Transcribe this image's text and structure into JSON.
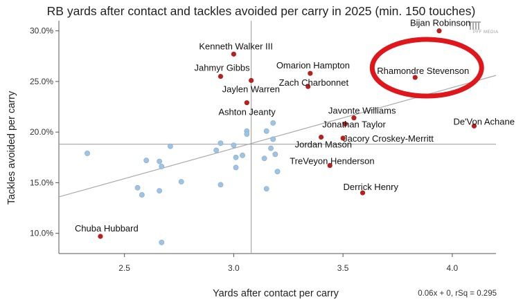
{
  "chart_data": {
    "type": "scatter",
    "title": "RB yards after contact and tackles avoided per carry in 2025 (min. 150 touches)",
    "xlabel": "Yards after contact per carry",
    "ylabel": "Tackles avoided per carry",
    "xlim": [
      2.2,
      4.2
    ],
    "ylim": [
      0.08,
      0.31
    ],
    "x_ticks": [
      "2.5",
      "3.0",
      "3.5",
      "4.0"
    ],
    "y_ticks": [
      "10.0%",
      "15.0%",
      "20.0%",
      "25.0%",
      "30.0%"
    ],
    "x_tick_values": [
      2.5,
      3.0,
      3.5,
      4.0
    ],
    "y_tick_values": [
      0.1,
      0.15,
      0.2,
      0.25,
      0.3
    ],
    "mean_lines": {
      "x": 3.08,
      "y": 0.188
    },
    "trendline": {
      "slope": 0.06,
      "intercept": 0.0,
      "label": "0.06x + 0, rSq = 0.295",
      "x_range": [
        2.2,
        4.2
      ],
      "y_range": [
        0.136,
        0.256
      ]
    },
    "highlight_color": "#b8201f",
    "other_color": "#9fc3e0",
    "circle_color": "#e0161b",
    "circled_player": "Rhamondre Stevenson",
    "labeled_points": [
      {
        "name": "Bijan Robinson",
        "x": 3.94,
        "y": 0.3
      },
      {
        "name": "Kenneth Walker III",
        "x": 3.0,
        "y": 0.277
      },
      {
        "name": "Jahmyr Gibbs",
        "x": 2.94,
        "y": 0.255
      },
      {
        "name": "Omarion Hampton",
        "x": 3.35,
        "y": 0.258
      },
      {
        "name": "Jaylen Warren",
        "x": 3.08,
        "y": 0.251
      },
      {
        "name": "Zach Charbonnet",
        "x": 3.34,
        "y": 0.245
      },
      {
        "name": "Rhamondre Stevenson",
        "x": 3.83,
        "y": 0.254
      },
      {
        "name": "Ashton Jeanty",
        "x": 3.06,
        "y": 0.229
      },
      {
        "name": "Javonte Williams",
        "x": 3.55,
        "y": 0.214
      },
      {
        "name": "Jonathan Taylor",
        "x": 3.51,
        "y": 0.208
      },
      {
        "name": "De'Von Achane",
        "x": 4.1,
        "y": 0.206
      },
      {
        "name": "Jordan Mason",
        "x": 3.4,
        "y": 0.195
      },
      {
        "name": "Jacory Croskey-Merritt",
        "x": 3.5,
        "y": 0.194
      },
      {
        "name": "TreVeyon Henderson",
        "x": 3.44,
        "y": 0.167
      },
      {
        "name": "Derrick Henry",
        "x": 3.59,
        "y": 0.14
      },
      {
        "name": "Chuba Hubbard",
        "x": 2.39,
        "y": 0.097
      }
    ],
    "other_points": [
      {
        "x": 2.33,
        "y": 0.179
      },
      {
        "x": 2.6,
        "y": 0.172
      },
      {
        "x": 2.66,
        "y": 0.171
      },
      {
        "x": 2.71,
        "y": 0.186
      },
      {
        "x": 2.67,
        "y": 0.166
      },
      {
        "x": 2.56,
        "y": 0.145
      },
      {
        "x": 2.58,
        "y": 0.138
      },
      {
        "x": 2.66,
        "y": 0.142
      },
      {
        "x": 2.76,
        "y": 0.151
      },
      {
        "x": 2.67,
        "y": 0.091
      },
      {
        "x": 2.92,
        "y": 0.182
      },
      {
        "x": 2.94,
        "y": 0.189
      },
      {
        "x": 2.94,
        "y": 0.148
      },
      {
        "x": 3.0,
        "y": 0.187
      },
      {
        "x": 3.01,
        "y": 0.175
      },
      {
        "x": 3.01,
        "y": 0.165
      },
      {
        "x": 3.04,
        "y": 0.177
      },
      {
        "x": 3.06,
        "y": 0.201
      },
      {
        "x": 3.06,
        "y": 0.198
      },
      {
        "x": 3.15,
        "y": 0.201
      },
      {
        "x": 3.18,
        "y": 0.209
      },
      {
        "x": 3.17,
        "y": 0.184
      },
      {
        "x": 3.18,
        "y": 0.193
      },
      {
        "x": 3.19,
        "y": 0.178
      },
      {
        "x": 3.14,
        "y": 0.174
      },
      {
        "x": 3.15,
        "y": 0.144
      },
      {
        "x": 3.2,
        "y": 0.161
      }
    ]
  },
  "watermark": "PFF MEDIA"
}
